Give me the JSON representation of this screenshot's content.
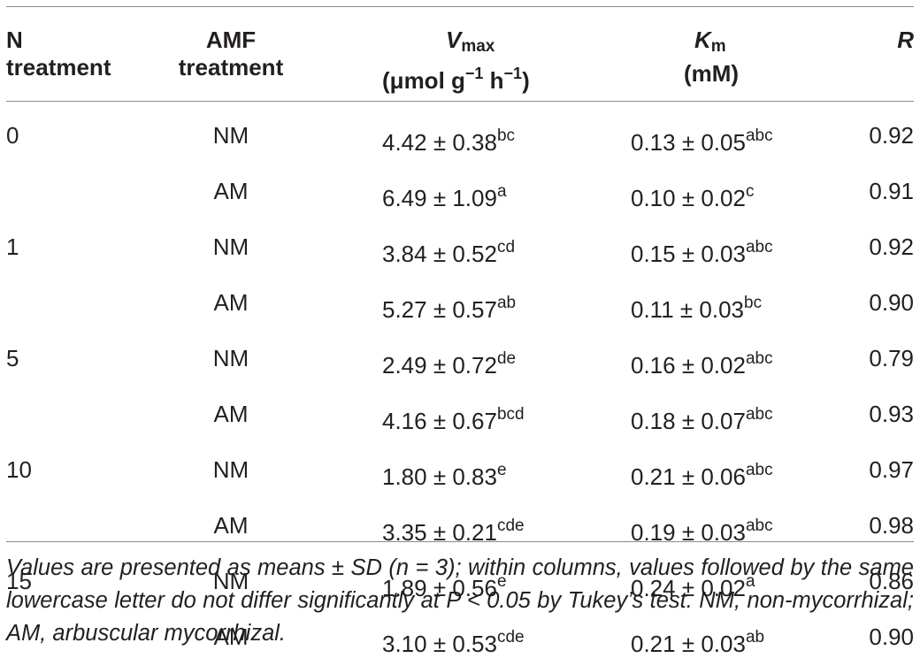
{
  "table": {
    "headers": {
      "n_treatment": [
        "N",
        "treatment"
      ],
      "amf_treatment": [
        "AMF",
        "treatment"
      ],
      "vmax": {
        "symbol": "V",
        "subscript": "max",
        "unit_prefix": "(μmol g",
        "unit_exp1": "−1",
        "unit_mid": " h",
        "unit_exp2": "−1",
        "unit_suffix": ")"
      },
      "km": {
        "symbol": "K",
        "subscript": "m",
        "unit": "(mM)"
      },
      "r": "R"
    },
    "rows": [
      {
        "n": "0",
        "amf": "NM",
        "vmax": "4.42 ± 0.38",
        "vmax_sig": "bc",
        "km": "0.13 ± 0.05",
        "km_sig": "abc",
        "r": "0.92"
      },
      {
        "n": "",
        "amf": "AM",
        "vmax": "6.49 ± 1.09",
        "vmax_sig": "a",
        "km": "0.10 ± 0.02",
        "km_sig": "c",
        "r": "0.91"
      },
      {
        "n": "1",
        "amf": "NM",
        "vmax": "3.84 ± 0.52",
        "vmax_sig": "cd",
        "km": "0.15 ± 0.03",
        "km_sig": "abc",
        "r": "0.92"
      },
      {
        "n": "",
        "amf": "AM",
        "vmax": "5.27 ± 0.57",
        "vmax_sig": "ab",
        "km": "0.11 ± 0.03",
        "km_sig": "bc",
        "r": "0.90"
      },
      {
        "n": "5",
        "amf": "NM",
        "vmax": "2.49 ± 0.72",
        "vmax_sig": "de",
        "km": "0.16 ± 0.02",
        "km_sig": "abc",
        "r": "0.79"
      },
      {
        "n": "",
        "amf": "AM",
        "vmax": "4.16 ± 0.67",
        "vmax_sig": "bcd",
        "km": "0.18 ± 0.07",
        "km_sig": "abc",
        "r": "0.93"
      },
      {
        "n": "10",
        "amf": "NM",
        "vmax": "1.80 ± 0.83",
        "vmax_sig": "e",
        "km": "0.21 ± 0.06",
        "km_sig": "abc",
        "r": "0.97"
      },
      {
        "n": "",
        "amf": "AM",
        "vmax": "3.35 ± 0.21",
        "vmax_sig": "cde",
        "km": "0.19 ± 0.03",
        "km_sig": "abc",
        "r": "0.98"
      },
      {
        "n": "15",
        "amf": "NM",
        "vmax": "1.89 ± 0.56",
        "vmax_sig": "e",
        "km": "0.24 ± 0.02",
        "km_sig": "a",
        "r": "0.86"
      },
      {
        "n": "",
        "amf": "AM",
        "vmax": "3.10 ± 0.53",
        "vmax_sig": "cde",
        "km": "0.21 ± 0.03",
        "km_sig": "ab",
        "r": "0.90"
      }
    ]
  },
  "footnote": "Values are presented as means ± SD (n = 3); within columns, values followed by the same lowercase letter do not differ significantly at P < 0.05 by Tukey’s test. NM, non-mycorrhizal; AM, arbuscular mycorrhizal.",
  "colors": {
    "text": "#231f20",
    "rule": "#8a8a8a",
    "background": "#ffffff"
  }
}
